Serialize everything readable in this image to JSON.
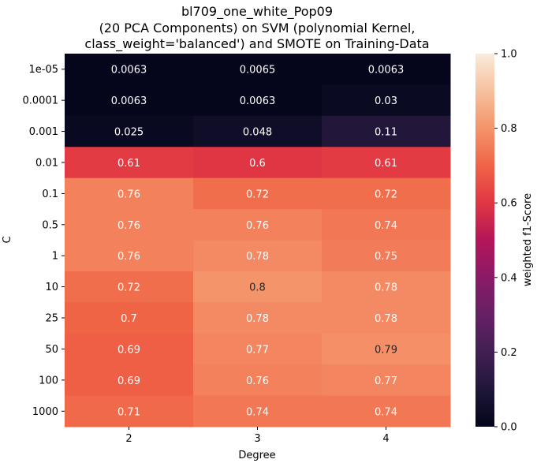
{
  "chart_data": {
    "type": "heatmap",
    "title_lines": [
      "bl709_one_white_Pop09",
      "(20 PCA Components) on SVM (polynomial Kernel,",
      "class_weight='balanced') and SMOTE on Training-Data"
    ],
    "xlabel": "Degree",
    "ylabel": "C",
    "x_categories": [
      "2",
      "3",
      "4"
    ],
    "y_categories": [
      "1e-05",
      "0.0001",
      "0.001",
      "0.01",
      "0.1",
      "0.5",
      "1",
      "10",
      "25",
      "50",
      "100",
      "1000"
    ],
    "values": [
      [
        0.0063,
        0.0065,
        0.0063
      ],
      [
        0.0063,
        0.0063,
        0.03
      ],
      [
        0.025,
        0.048,
        0.11
      ],
      [
        0.61,
        0.6,
        0.61
      ],
      [
        0.76,
        0.72,
        0.72
      ],
      [
        0.76,
        0.76,
        0.74
      ],
      [
        0.76,
        0.78,
        0.75
      ],
      [
        0.72,
        0.8,
        0.78
      ],
      [
        0.7,
        0.78,
        0.78
      ],
      [
        0.69,
        0.77,
        0.79
      ],
      [
        0.69,
        0.76,
        0.77
      ],
      [
        0.71,
        0.74,
        0.74
      ]
    ],
    "labels": [
      [
        "0.0063",
        "0.0065",
        "0.0063"
      ],
      [
        "0.0063",
        "0.0063",
        "0.03"
      ],
      [
        "0.025",
        "0.048",
        "0.11"
      ],
      [
        "0.61",
        "0.6",
        "0.61"
      ],
      [
        "0.76",
        "0.72",
        "0.72"
      ],
      [
        "0.76",
        "0.76",
        "0.74"
      ],
      [
        "0.76",
        "0.78",
        "0.75"
      ],
      [
        "0.72",
        "0.8",
        "0.78"
      ],
      [
        "0.7",
        "0.78",
        "0.78"
      ],
      [
        "0.69",
        "0.77",
        "0.79"
      ],
      [
        "0.69",
        "0.76",
        "0.77"
      ],
      [
        "0.71",
        "0.74",
        "0.74"
      ]
    ],
    "colorbar": {
      "label": "weighted f1-Score",
      "range": [
        0.0,
        1.0
      ],
      "ticks": [
        "0.0",
        "0.2",
        "0.4",
        "0.6",
        "0.8",
        "1.0"
      ],
      "colormap": "rocket"
    }
  }
}
